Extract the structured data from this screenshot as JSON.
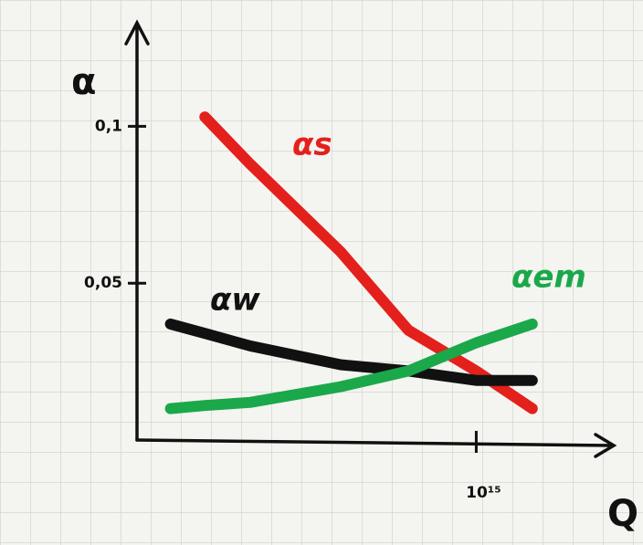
{
  "chart_data": {
    "type": "line",
    "y_label": "α",
    "x_label": "Q",
    "log_x": true,
    "x": [
      30,
      1000,
      100000,
      1000000000,
      1000000000000,
      1000000000000000,
      300000000000000000
    ],
    "xlim": [
      1,
      1000000000000000000000
    ],
    "xticks": [
      {
        "value": 1000000000000000,
        "label": "10¹⁵"
      }
    ],
    "ylim": [
      0,
      0.133
    ],
    "yticks": [
      {
        "value": 0.05,
        "label": "0,05"
      },
      {
        "value": 0.1,
        "label": "0,1"
      }
    ],
    "series": [
      {
        "name": "αs",
        "color": "#e3201c",
        "values": [
          null,
          0.103,
          0.088,
          0.06,
          0.035,
          0.022,
          0.01
        ]
      },
      {
        "name": "αw",
        "color": "#111111",
        "values": [
          0.037,
          0.034,
          0.03,
          0.024,
          0.022,
          0.019,
          0.019
        ]
      },
      {
        "name": "αem",
        "color": "#1aa84a",
        "values": [
          0.01,
          0.011,
          0.012,
          0.017,
          0.022,
          0.031,
          0.037
        ]
      }
    ]
  }
}
